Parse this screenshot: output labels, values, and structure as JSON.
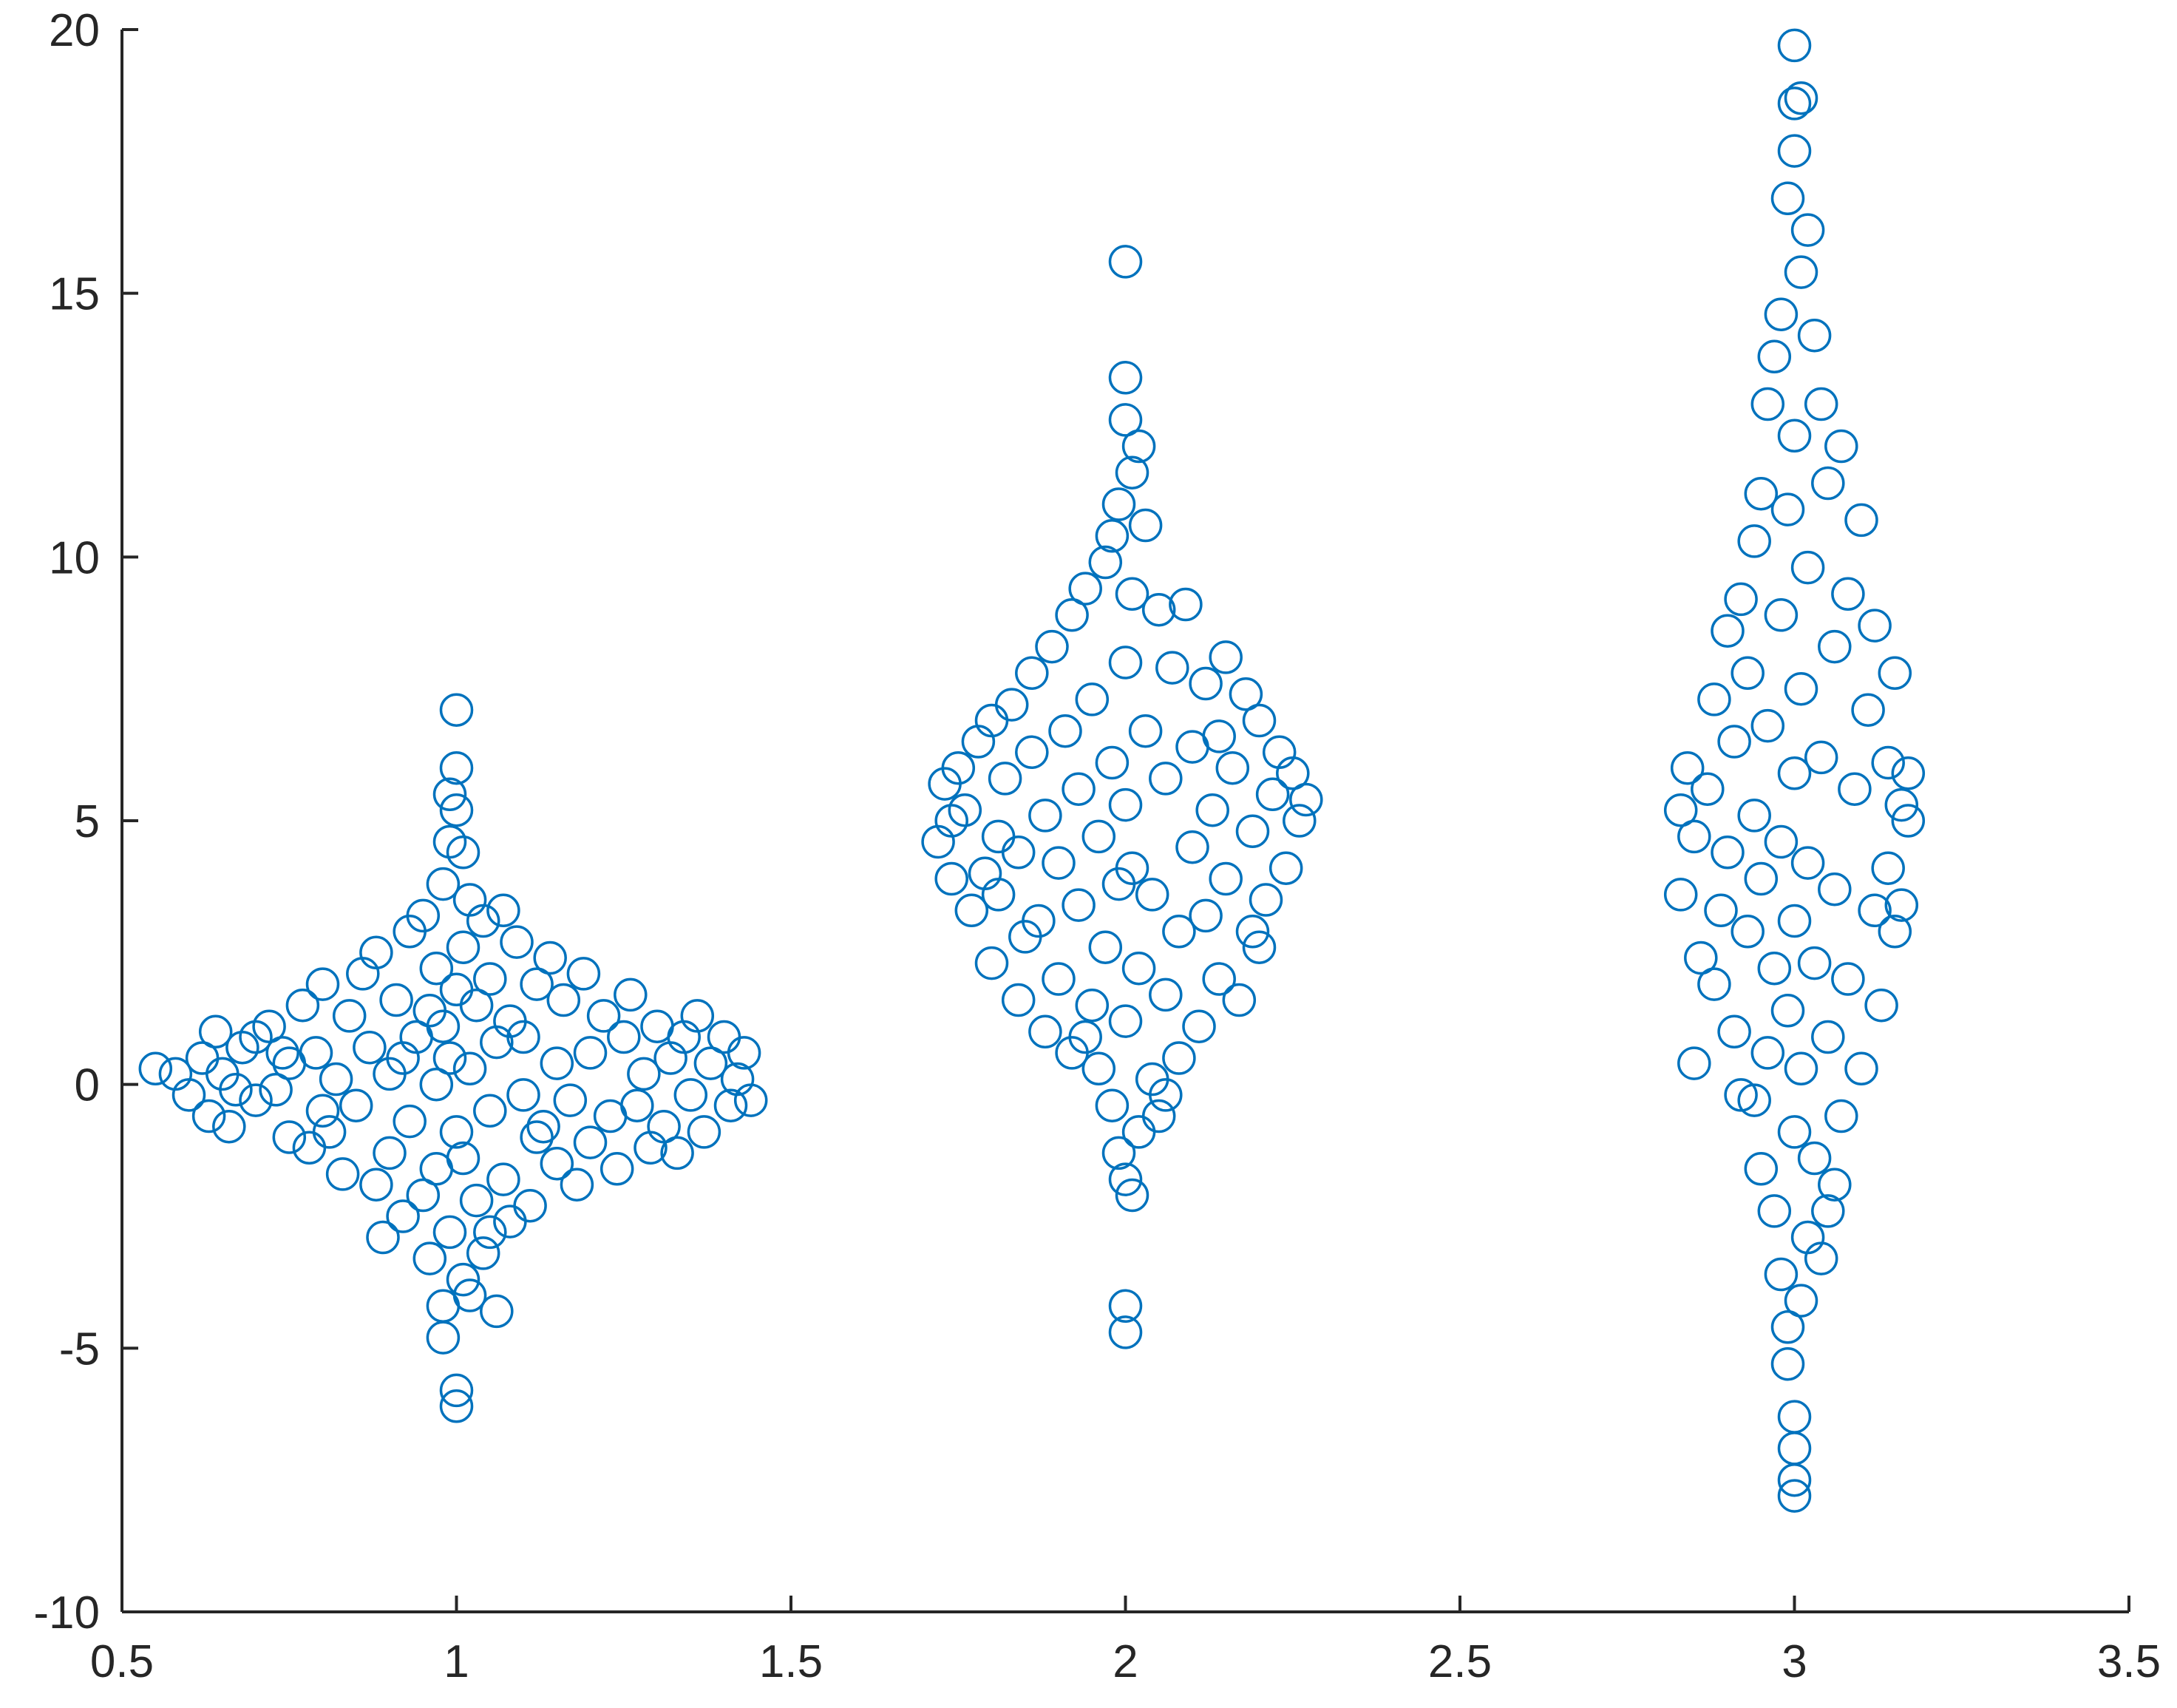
{
  "chart_data": {
    "type": "scatter",
    "title": "",
    "xlabel": "",
    "ylabel": "",
    "xlim": [
      0.5,
      3.5
    ],
    "ylim": [
      -10,
      20
    ],
    "xticks": [
      "0.5",
      "1",
      "1.5",
      "2",
      "2.5",
      "3",
      "3.5"
    ],
    "yticks": [
      "-10",
      "-5",
      "0",
      "5",
      "10",
      "15",
      "20"
    ],
    "grid": false,
    "legend": "none",
    "marker": "open-circle",
    "marker_color": "#0072BD",
    "series": [
      {
        "points": [
          [
            0.55,
            0.3
          ],
          [
            0.58,
            0.2
          ],
          [
            0.6,
            -0.2
          ],
          [
            0.62,
            0.5
          ],
          [
            0.63,
            -0.6
          ],
          [
            0.64,
            1.0
          ],
          [
            0.65,
            0.2
          ],
          [
            0.66,
            -0.8
          ],
          [
            0.68,
            0.7
          ],
          [
            0.7,
            -0.3
          ],
          [
            0.7,
            0.9
          ],
          [
            0.72,
            1.1
          ],
          [
            0.73,
            -0.1
          ],
          [
            0.75,
            -1.0
          ],
          [
            0.75,
            0.4
          ],
          [
            0.77,
            1.5
          ],
          [
            0.78,
            -1.2
          ],
          [
            0.79,
            0.6
          ],
          [
            0.8,
            1.9
          ],
          [
            0.8,
            -0.5
          ],
          [
            0.82,
            0.1
          ],
          [
            0.83,
            -1.7
          ],
          [
            0.84,
            1.3
          ],
          [
            0.85,
            -0.4
          ],
          [
            0.86,
            2.1
          ],
          [
            0.87,
            0.7
          ],
          [
            0.88,
            -1.9
          ],
          [
            0.88,
            2.5
          ],
          [
            0.9,
            0.2
          ],
          [
            0.9,
            -1.3
          ],
          [
            0.91,
            1.6
          ],
          [
            0.92,
            -2.5
          ],
          [
            0.93,
            2.9
          ],
          [
            0.93,
            -0.7
          ],
          [
            0.94,
            0.9
          ],
          [
            0.95,
            -2.1
          ],
          [
            0.95,
            3.2
          ],
          [
            0.96,
            1.4
          ],
          [
            0.96,
            -3.3
          ],
          [
            0.97,
            0.0
          ],
          [
            0.97,
            2.2
          ],
          [
            0.97,
            -1.6
          ],
          [
            0.98,
            3.8
          ],
          [
            0.98,
            -4.2
          ],
          [
            0.98,
            -4.8
          ],
          [
            0.98,
            1.1
          ],
          [
            0.99,
            4.6
          ],
          [
            0.99,
            -2.8
          ],
          [
            0.99,
            5.5
          ],
          [
            0.99,
            0.5
          ],
          [
            1.0,
            6.0
          ],
          [
            1.0,
            -5.8
          ],
          [
            1.0,
            -6.1
          ],
          [
            1.0,
            7.1
          ],
          [
            1.0,
            1.8
          ],
          [
            1.0,
            -0.9
          ],
          [
            1.0,
            5.2
          ],
          [
            1.01,
            -3.7
          ],
          [
            1.01,
            2.6
          ],
          [
            1.01,
            4.4
          ],
          [
            1.01,
            -1.4
          ],
          [
            1.02,
            3.5
          ],
          [
            1.02,
            -4.0
          ],
          [
            1.02,
            0.3
          ],
          [
            1.03,
            1.5
          ],
          [
            1.03,
            -2.2
          ],
          [
            1.04,
            3.1
          ],
          [
            1.04,
            -3.2
          ],
          [
            1.05,
            -0.5
          ],
          [
            1.05,
            2.0
          ],
          [
            1.06,
            -4.3
          ],
          [
            1.06,
            0.8
          ],
          [
            1.07,
            3.3
          ],
          [
            1.07,
            -1.8
          ],
          [
            1.08,
            1.2
          ],
          [
            1.08,
            -2.6
          ],
          [
            1.09,
            2.7
          ],
          [
            1.1,
            -0.2
          ],
          [
            1.1,
            0.9
          ],
          [
            1.11,
            -2.3
          ],
          [
            1.12,
            1.9
          ],
          [
            1.13,
            -0.8
          ],
          [
            1.14,
            2.4
          ],
          [
            1.15,
            0.4
          ],
          [
            1.15,
            -1.5
          ],
          [
            1.16,
            1.6
          ],
          [
            1.17,
            -0.3
          ],
          [
            1.18,
            -1.9
          ],
          [
            1.19,
            2.1
          ],
          [
            1.2,
            0.6
          ],
          [
            1.2,
            -1.1
          ],
          [
            1.22,
            1.3
          ],
          [
            1.23,
            -0.6
          ],
          [
            1.24,
            -1.6
          ],
          [
            1.25,
            0.9
          ],
          [
            1.26,
            1.7
          ],
          [
            1.27,
            -0.4
          ],
          [
            1.28,
            0.2
          ],
          [
            1.29,
            -1.2
          ],
          [
            1.3,
            1.1
          ],
          [
            1.31,
            -0.8
          ],
          [
            1.32,
            0.5
          ],
          [
            1.33,
            -1.3
          ],
          [
            1.34,
            0.9
          ],
          [
            1.35,
            -0.2
          ],
          [
            1.36,
            1.3
          ],
          [
            1.37,
            -0.9
          ],
          [
            1.38,
            0.4
          ],
          [
            1.4,
            0.9
          ],
          [
            1.41,
            -0.4
          ],
          [
            1.42,
            0.1
          ],
          [
            1.43,
            0.6
          ],
          [
            1.44,
            -0.3
          ],
          [
            0.67,
            -0.1
          ],
          [
            0.74,
            0.6
          ],
          [
            0.81,
            -0.9
          ],
          [
            0.89,
            -2.9
          ],
          [
            0.92,
            0.5
          ],
          [
            1.05,
            -2.8
          ],
          [
            1.12,
            -1.0
          ],
          [
            1.75,
            6.0
          ],
          [
            1.73,
            5.7
          ],
          [
            1.72,
            4.6
          ],
          [
            1.74,
            3.9
          ],
          [
            1.76,
            5.2
          ],
          [
            1.77,
            3.3
          ],
          [
            1.78,
            6.5
          ],
          [
            1.79,
            4.0
          ],
          [
            1.8,
            2.3
          ],
          [
            1.8,
            6.9
          ],
          [
            1.81,
            3.6
          ],
          [
            1.82,
            5.8
          ],
          [
            1.83,
            7.2
          ],
          [
            1.84,
            1.6
          ],
          [
            1.84,
            4.4
          ],
          [
            1.85,
            2.8
          ],
          [
            1.86,
            6.3
          ],
          [
            1.86,
            7.8
          ],
          [
            1.87,
            3.1
          ],
          [
            1.88,
            1.0
          ],
          [
            1.88,
            5.1
          ],
          [
            1.89,
            8.3
          ],
          [
            1.9,
            2.0
          ],
          [
            1.9,
            4.2
          ],
          [
            1.91,
            6.7
          ],
          [
            1.92,
            0.6
          ],
          [
            1.92,
            8.9
          ],
          [
            1.93,
            3.4
          ],
          [
            1.93,
            5.6
          ],
          [
            1.94,
            9.4
          ],
          [
            1.95,
            1.5
          ],
          [
            1.95,
            7.3
          ],
          [
            1.96,
            0.3
          ],
          [
            1.96,
            4.7
          ],
          [
            1.97,
            9.9
          ],
          [
            1.97,
            2.6
          ],
          [
            1.98,
            -0.4
          ],
          [
            1.98,
            6.1
          ],
          [
            1.98,
            10.4
          ],
          [
            1.99,
            3.8
          ],
          [
            1.99,
            -1.3
          ],
          [
            1.99,
            11.0
          ],
          [
            2.0,
            15.6
          ],
          [
            2.0,
            13.4
          ],
          [
            2.0,
            12.6
          ],
          [
            2.0,
            -4.2
          ],
          [
            2.0,
            -4.7
          ],
          [
            2.0,
            5.3
          ],
          [
            2.0,
            8.0
          ],
          [
            2.0,
            1.2
          ],
          [
            2.0,
            -1.8
          ],
          [
            2.01,
            11.6
          ],
          [
            2.01,
            -2.1
          ],
          [
            2.01,
            4.1
          ],
          [
            2.01,
            9.3
          ],
          [
            2.02,
            12.1
          ],
          [
            2.02,
            2.2
          ],
          [
            2.02,
            -0.9
          ],
          [
            2.03,
            10.6
          ],
          [
            2.03,
            6.7
          ],
          [
            2.04,
            0.1
          ],
          [
            2.04,
            3.6
          ],
          [
            2.05,
            9.0
          ],
          [
            2.05,
            -0.6
          ],
          [
            2.06,
            5.8
          ],
          [
            2.06,
            1.7
          ],
          [
            2.07,
            7.9
          ],
          [
            2.08,
            2.9
          ],
          [
            2.08,
            0.5
          ],
          [
            2.09,
            9.1
          ],
          [
            2.1,
            4.5
          ],
          [
            2.1,
            6.4
          ],
          [
            2.11,
            1.1
          ],
          [
            2.12,
            7.6
          ],
          [
            2.12,
            3.2
          ],
          [
            2.13,
            5.2
          ],
          [
            2.14,
            2.0
          ],
          [
            2.15,
            8.1
          ],
          [
            2.15,
            3.9
          ],
          [
            2.16,
            6.0
          ],
          [
            2.17,
            1.6
          ],
          [
            2.18,
            7.4
          ],
          [
            2.19,
            4.8
          ],
          [
            2.2,
            2.6
          ],
          [
            2.2,
            6.9
          ],
          [
            2.21,
            3.5
          ],
          [
            2.22,
            5.5
          ],
          [
            2.23,
            6.3
          ],
          [
            2.24,
            4.1
          ],
          [
            2.25,
            5.9
          ],
          [
            2.26,
            5.0
          ],
          [
            2.27,
            5.4
          ],
          [
            1.74,
            5.0
          ],
          [
            1.81,
            4.7
          ],
          [
            1.94,
            0.9
          ],
          [
            2.06,
            -0.2
          ],
          [
            2.14,
            6.6
          ],
          [
            2.19,
            2.9
          ],
          [
            2.83,
            5.2
          ],
          [
            2.83,
            3.6
          ],
          [
            2.84,
            6.0
          ],
          [
            2.85,
            4.7
          ],
          [
            2.86,
            2.4
          ],
          [
            2.87,
            5.6
          ],
          [
            2.88,
            7.3
          ],
          [
            2.88,
            1.9
          ],
          [
            2.89,
            3.3
          ],
          [
            2.9,
            8.6
          ],
          [
            2.9,
            4.4
          ],
          [
            2.91,
            1.0
          ],
          [
            2.91,
            6.5
          ],
          [
            2.92,
            9.2
          ],
          [
            2.92,
            -0.2
          ],
          [
            2.93,
            2.9
          ],
          [
            2.93,
            7.8
          ],
          [
            2.94,
            10.3
          ],
          [
            2.94,
            5.1
          ],
          [
            2.95,
            -1.6
          ],
          [
            2.95,
            11.2
          ],
          [
            2.95,
            3.9
          ],
          [
            2.96,
            0.6
          ],
          [
            2.96,
            12.9
          ],
          [
            2.96,
            6.8
          ],
          [
            2.97,
            -2.4
          ],
          [
            2.97,
            13.8
          ],
          [
            2.97,
            2.2
          ],
          [
            2.98,
            -3.6
          ],
          [
            2.98,
            14.6
          ],
          [
            2.98,
            8.9
          ],
          [
            2.98,
            4.6
          ],
          [
            2.99,
            16.8
          ],
          [
            2.99,
            -4.6
          ],
          [
            2.99,
            -5.3
          ],
          [
            2.99,
            1.4
          ],
          [
            2.99,
            10.9
          ],
          [
            3.0,
            17.7
          ],
          [
            3.0,
            18.6
          ],
          [
            3.0,
            19.7
          ],
          [
            3.0,
            -6.3
          ],
          [
            3.0,
            -6.9
          ],
          [
            3.0,
            -7.5
          ],
          [
            3.0,
            -7.8
          ],
          [
            3.0,
            5.9
          ],
          [
            3.0,
            -0.9
          ],
          [
            3.0,
            3.1
          ],
          [
            3.0,
            12.3
          ],
          [
            3.01,
            15.4
          ],
          [
            3.01,
            -4.1
          ],
          [
            3.01,
            18.7
          ],
          [
            3.01,
            7.5
          ],
          [
            3.01,
            0.3
          ],
          [
            3.02,
            16.2
          ],
          [
            3.02,
            -2.9
          ],
          [
            3.02,
            9.8
          ],
          [
            3.02,
            4.2
          ],
          [
            3.03,
            14.2
          ],
          [
            3.03,
            -1.4
          ],
          [
            3.03,
            2.3
          ],
          [
            3.04,
            12.9
          ],
          [
            3.04,
            -3.3
          ],
          [
            3.04,
            6.2
          ],
          [
            3.05,
            11.4
          ],
          [
            3.05,
            -2.4
          ],
          [
            3.05,
            0.9
          ],
          [
            3.06,
            8.3
          ],
          [
            3.06,
            3.7
          ],
          [
            3.07,
            12.1
          ],
          [
            3.07,
            -0.6
          ],
          [
            3.08,
            9.3
          ],
          [
            3.08,
            2.0
          ],
          [
            3.09,
            5.6
          ],
          [
            3.1,
            10.7
          ],
          [
            3.1,
            0.3
          ],
          [
            3.11,
            7.1
          ],
          [
            3.12,
            3.3
          ],
          [
            3.12,
            8.7
          ],
          [
            3.13,
            1.5
          ],
          [
            3.14,
            6.1
          ],
          [
            3.14,
            4.1
          ],
          [
            3.15,
            7.8
          ],
          [
            3.15,
            2.9
          ],
          [
            3.16,
            5.3
          ],
          [
            3.16,
            3.4
          ],
          [
            3.17,
            5.9
          ],
          [
            3.17,
            5.0
          ],
          [
            2.85,
            0.4
          ],
          [
            2.94,
            -0.3
          ],
          [
            3.06,
            -1.9
          ]
        ]
      }
    ]
  }
}
